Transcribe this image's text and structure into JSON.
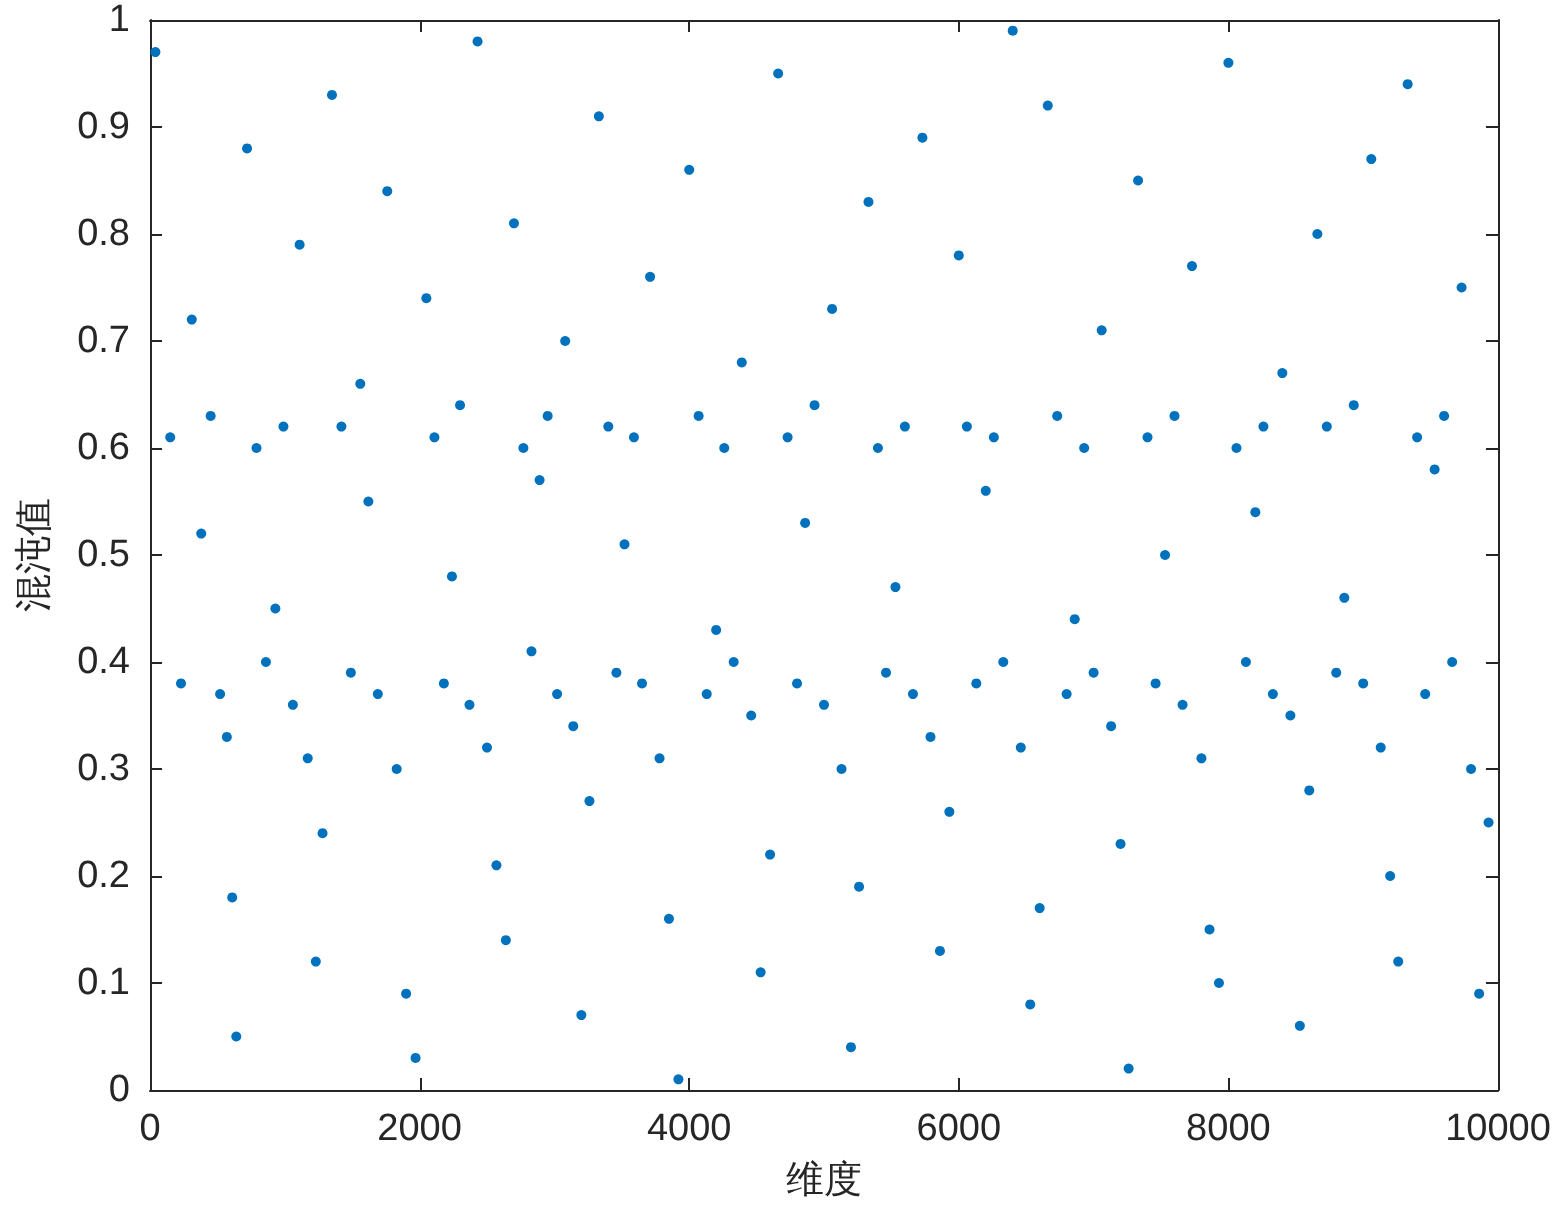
{
  "chart_data": {
    "type": "scatter",
    "xlabel": "维度",
    "ylabel": "混沌值",
    "xlim": [
      0,
      10000
    ],
    "xticks": [
      0,
      2000,
      4000,
      6000,
      8000,
      10000
    ],
    "ylim": [
      0,
      1
    ],
    "yticks": [
      0,
      0.1,
      0.2,
      0.3,
      0.4,
      0.5,
      0.6,
      0.7,
      0.8,
      0.9,
      1
    ],
    "grid": false,
    "marker": "circle",
    "color": "#0072bd",
    "x": [
      40,
      150,
      230,
      310,
      380,
      450,
      520,
      570,
      610,
      640,
      720,
      790,
      860,
      930,
      990,
      1060,
      1110,
      1170,
      1230,
      1280,
      1350,
      1420,
      1490,
      1560,
      1620,
      1690,
      1760,
      1830,
      1900,
      1970,
      2050,
      2110,
      2180,
      2240,
      2300,
      2370,
      2430,
      2500,
      2570,
      2640,
      2700,
      2770,
      2830,
      2890,
      2950,
      3020,
      3080,
      3140,
      3200,
      3260,
      3330,
      3400,
      3460,
      3520,
      3590,
      3650,
      3710,
      3780,
      3850,
      3920,
      4000,
      4070,
      4130,
      4200,
      4260,
      4330,
      4390,
      4460,
      4530,
      4600,
      4660,
      4730,
      4800,
      4860,
      4930,
      5000,
      5060,
      5130,
      5200,
      5260,
      5330,
      5400,
      5460,
      5530,
      5600,
      5660,
      5730,
      5790,
      5860,
      5930,
      6000,
      6060,
      6130,
      6200,
      6260,
      6330,
      6400,
      6460,
      6530,
      6600,
      6660,
      6730,
      6800,
      6860,
      6930,
      7000,
      7060,
      7130,
      7200,
      7260,
      7330,
      7400,
      7460,
      7530,
      7600,
      7660,
      7730,
      7800,
      7860,
      7930,
      8000,
      8060,
      8130,
      8200,
      8260,
      8330,
      8400,
      8460,
      8530,
      8600,
      8660,
      8730,
      8800,
      8860,
      8930,
      9000,
      9060,
      9130,
      9200,
      9260,
      9330,
      9400,
      9460,
      9530,
      9600,
      9660,
      9730,
      9800,
      9860,
      9930
    ],
    "values": [
      0.97,
      0.61,
      0.38,
      0.72,
      0.52,
      0.63,
      0.37,
      0.33,
      0.18,
      0.05,
      0.88,
      0.6,
      0.4,
      0.45,
      0.62,
      0.36,
      0.79,
      0.31,
      0.12,
      0.24,
      0.93,
      0.62,
      0.39,
      0.66,
      0.55,
      0.37,
      0.84,
      0.3,
      0.09,
      0.03,
      0.74,
      0.61,
      0.38,
      0.48,
      0.64,
      0.36,
      0.98,
      0.32,
      0.21,
      0.14,
      0.81,
      0.6,
      0.41,
      0.57,
      0.63,
      0.37,
      0.7,
      0.34,
      0.07,
      0.27,
      0.91,
      0.62,
      0.39,
      0.51,
      0.61,
      0.38,
      0.76,
      0.31,
      0.16,
      0.01,
      0.86,
      0.63,
      0.37,
      0.43,
      0.6,
      0.4,
      0.68,
      0.35,
      0.11,
      0.22,
      0.95,
      0.61,
      0.38,
      0.53,
      0.64,
      0.36,
      0.73,
      0.3,
      0.04,
      0.19,
      0.83,
      0.6,
      0.39,
      0.47,
      0.62,
      0.37,
      0.89,
      0.33,
      0.13,
      0.26,
      0.78,
      0.62,
      0.38,
      0.56,
      0.61,
      0.4,
      0.99,
      0.32,
      0.08,
      0.17,
      0.92,
      0.63,
      0.37,
      0.44,
      0.6,
      0.39,
      0.71,
      0.34,
      0.23,
      0.02,
      0.85,
      0.61,
      0.38,
      0.5,
      0.63,
      0.36,
      0.77,
      0.31,
      0.15,
      0.1,
      0.96,
      0.6,
      0.4,
      0.54,
      0.62,
      0.37,
      0.67,
      0.35,
      0.06,
      0.28,
      0.8,
      0.62,
      0.39,
      0.46,
      0.64,
      0.38,
      0.87,
      0.32,
      0.2,
      0.12,
      0.94,
      0.61,
      0.37,
      0.58,
      0.63,
      0.4,
      0.75,
      0.3,
      0.09,
      0.25
    ]
  }
}
